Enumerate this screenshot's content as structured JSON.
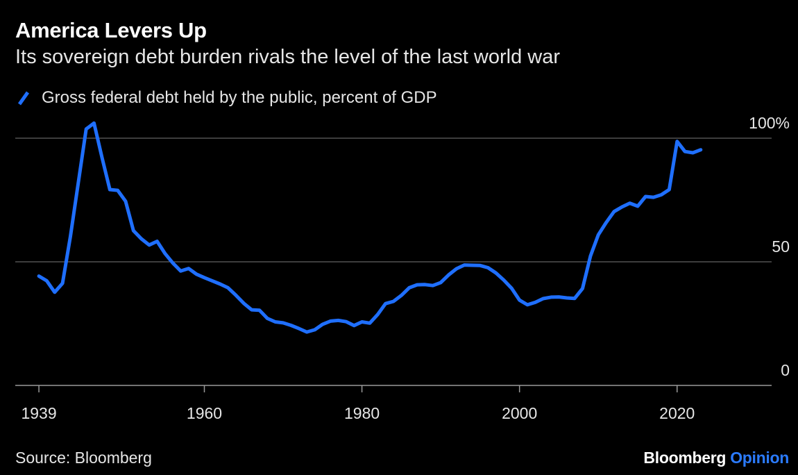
{
  "header": {
    "title": "America Levers Up",
    "subtitle": "Its sovereign debt burden rivals the level of the last world war"
  },
  "footer": {
    "source": "Source: Bloomberg",
    "brand_main": "Bloomberg",
    "brand_accent": "Opinion"
  },
  "colors": {
    "background": "#000000",
    "line": "#1f6fff",
    "grid": "#7a7a7a",
    "text": "#ffffff",
    "brand_accent": "#2b7bff"
  },
  "chart_data": {
    "type": "line",
    "title": "America Levers Up",
    "subtitle": "Its sovereign debt burden rivals the level of the last world war",
    "xlabel": "",
    "ylabel": "",
    "xlim": [
      1936,
      2032
    ],
    "ylim": [
      0,
      100
    ],
    "grid": true,
    "legend_position": "top-left",
    "x_ticks": [
      1939,
      1960,
      1980,
      2000,
      2020
    ],
    "x_tick_labels": [
      "1939",
      "1960",
      "1980",
      "2000",
      "2020"
    ],
    "y_ticks": [
      0,
      50,
      100
    ],
    "y_tick_labels": [
      "0",
      "50",
      "100%"
    ],
    "series": [
      {
        "name": "Gross federal debt held by the public, percent of GDP",
        "x": [
          1939,
          1940,
          1941,
          1942,
          1943,
          1944,
          1945,
          1946,
          1947,
          1948,
          1949,
          1950,
          1951,
          1952,
          1953,
          1954,
          1955,
          1956,
          1957,
          1958,
          1959,
          1960,
          1961,
          1962,
          1963,
          1964,
          1965,
          1966,
          1967,
          1968,
          1969,
          1970,
          1971,
          1972,
          1973,
          1974,
          1975,
          1976,
          1977,
          1978,
          1979,
          1980,
          1981,
          1982,
          1983,
          1984,
          1985,
          1986,
          1987,
          1988,
          1989,
          1990,
          1991,
          1992,
          1993,
          1994,
          1995,
          1996,
          1997,
          1998,
          1999,
          2000,
          2001,
          2002,
          2003,
          2004,
          2005,
          2006,
          2007,
          2008,
          2009,
          2010,
          2011,
          2012,
          2013,
          2014,
          2015,
          2016,
          2017,
          2018,
          2019,
          2020,
          2021,
          2022,
          2023
        ],
        "values": [
          44.2,
          42.3,
          37.7,
          41.3,
          60.3,
          81.9,
          103.7,
          106.1,
          92.3,
          79.2,
          78.9,
          74.5,
          62.6,
          59.3,
          56.8,
          58.3,
          53.4,
          49.5,
          46.3,
          47.3,
          45.0,
          43.6,
          42.3,
          41.0,
          39.5,
          36.5,
          33.2,
          30.6,
          30.4,
          27.1,
          25.7,
          25.3,
          24.3,
          23.0,
          21.6,
          22.5,
          24.7,
          26.0,
          26.3,
          25.8,
          24.2,
          25.7,
          25.2,
          28.7,
          33.1,
          34.0,
          36.4,
          39.5,
          40.7,
          40.8,
          40.4,
          41.6,
          44.7,
          47.2,
          48.7,
          48.6,
          48.5,
          47.6,
          45.5,
          42.6,
          39.3,
          34.5,
          32.6,
          33.6,
          35.1,
          35.7,
          35.8,
          35.4,
          35.2,
          39.2,
          52.3,
          60.9,
          65.9,
          70.3,
          72.2,
          73.7,
          72.5,
          76.4,
          76.1,
          77.1,
          79.2,
          98.7,
          94.6,
          94.1,
          95.3
        ]
      }
    ]
  }
}
